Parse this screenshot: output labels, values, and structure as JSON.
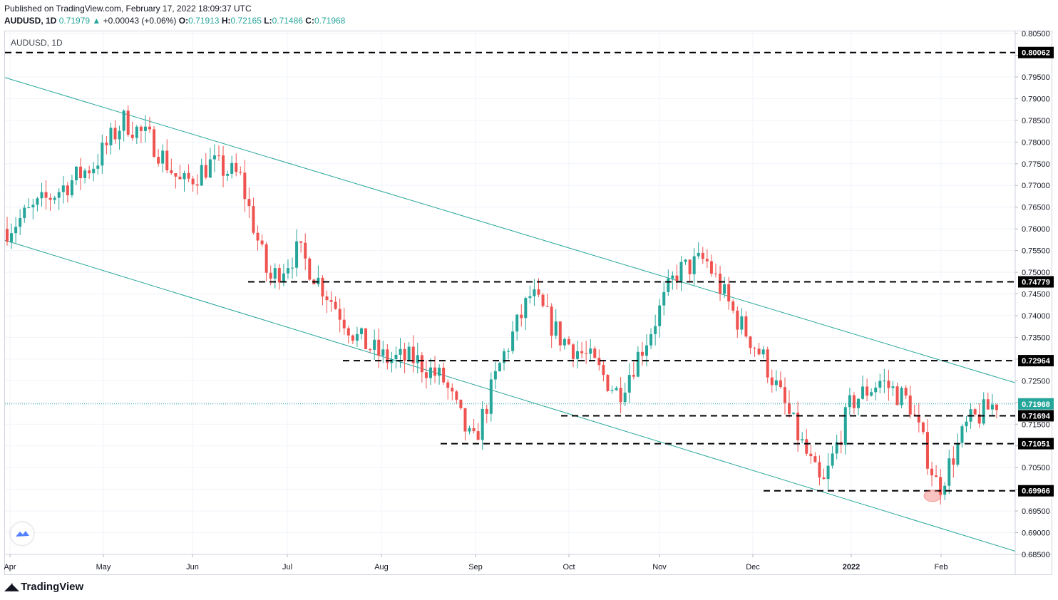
{
  "header": {
    "published": "Published on TradingView.com, February 17, 2022 18:09:37 UTC",
    "symbol": "AUDUSD, 1D",
    "last": "0.71979",
    "change": "+0.00043 (+0.06%)",
    "open_label": "O:",
    "open": "0.71913",
    "high_label": "H:",
    "high": "0.72165",
    "low_label": "L:",
    "low": "0.71486",
    "close_label": "C:",
    "close": "0.71968"
  },
  "chart_label": "AUDUSD, 1D",
  "footer": {
    "brand": "TradingView"
  },
  "colors": {
    "up": "#26a69a",
    "down": "#ef5350",
    "trend": "#26a69a",
    "level": "#000000",
    "current": "#26a69a"
  },
  "chart_data": {
    "type": "candlestick",
    "ylim": [
      0.685,
      0.8055
    ],
    "y_ticks": [
      "0.80500",
      "0.80000",
      "0.79500",
      "0.79000",
      "0.78500",
      "0.78000",
      "0.77500",
      "0.77000",
      "0.76500",
      "0.76000",
      "0.75500",
      "0.75000",
      "0.74500",
      "0.74000",
      "0.73500",
      "0.73000",
      "0.72500",
      "0.72000",
      "0.71500",
      "0.71000",
      "0.70500",
      "0.70000",
      "0.69500",
      "0.69000",
      "0.68500"
    ],
    "x_ticks": [
      "Apr",
      "May",
      "Jun",
      "Jul",
      "Aug",
      "Sep",
      "Oct",
      "Nov",
      "Dec",
      "2022",
      "Feb"
    ],
    "current_price": "0.71968",
    "levels": [
      {
        "label": "0.80062",
        "value": 0.80062,
        "from": "Apr"
      },
      {
        "label": "0.74779",
        "value": 0.74779,
        "from": "Jun"
      },
      {
        "label": "0.72964",
        "value": 0.72964,
        "from": "Jul"
      },
      {
        "label": "0.71694",
        "value": 0.71694,
        "from": "Sep"
      },
      {
        "label": "0.71051",
        "value": 0.71051,
        "from": "Aug"
      },
      {
        "label": "0.69966",
        "value": 0.69966,
        "from": "Dec"
      }
    ],
    "trendlines": [
      {
        "name": "upper",
        "start": [
          "Apr",
          0.7945
        ],
        "end": [
          "Feb",
          0.7297
        ]
      },
      {
        "name": "lower",
        "start": [
          "Apr",
          0.757
        ],
        "end": [
          "Feb",
          0.691
        ]
      }
    ],
    "series_ohlc_approx": [
      0.76,
      0.765,
      0.77,
      0.775,
      0.785,
      0.78,
      0.77,
      0.775,
      0.772,
      0.748,
      0.755,
      0.745,
      0.735,
      0.73,
      0.73,
      0.725,
      0.71,
      0.73,
      0.745,
      0.735,
      0.73,
      0.722,
      0.735,
      0.75,
      0.753,
      0.74,
      0.73,
      0.715,
      0.7,
      0.72,
      0.725,
      0.72,
      0.7,
      0.715,
      0.72
    ]
  }
}
